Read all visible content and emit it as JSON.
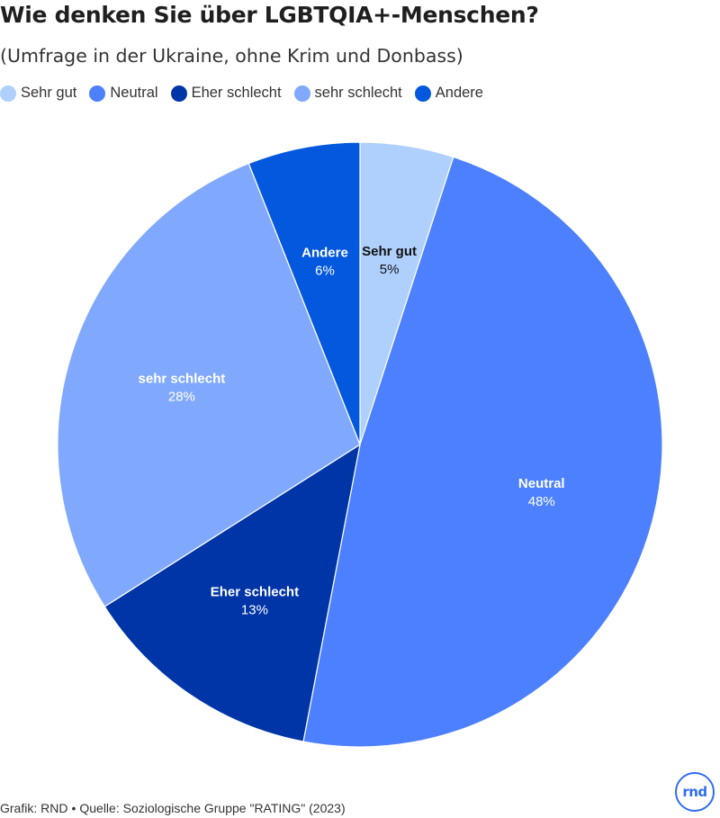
{
  "header": {
    "title": "Wie denken Sie über LGBTQIA+-Menschen?",
    "subtitle": "(Umfrage in der Ukraine, ohne Krim und Donbass)"
  },
  "legend": {
    "items": [
      {
        "label": "Sehr gut",
        "color": "#afd0fd"
      },
      {
        "label": "Neutral",
        "color": "#4c80fe"
      },
      {
        "label": "Eher schlecht",
        "color": "#0035a7"
      },
      {
        "label": "sehr schlecht",
        "color": "#80a9fd"
      },
      {
        "label": "Andere",
        "color": "#0358dd"
      }
    ]
  },
  "chart_data": {
    "type": "pie",
    "title": "Wie denken Sie über LGBTQIA+-Menschen?",
    "subtitle": "(Umfrage in der Ukraine, ohne Krim und Donbass)",
    "slices": [
      {
        "label": "Sehr gut",
        "value": 5,
        "display": "5%",
        "color": "#afd0fd",
        "label_color": "#111111"
      },
      {
        "label": "Neutral",
        "value": 48,
        "display": "48%",
        "color": "#4c80fe",
        "label_color": "#ffffff"
      },
      {
        "label": "Eher schlecht",
        "value": 13,
        "display": "13%",
        "color": "#0035a7",
        "label_color": "#ffffff"
      },
      {
        "label": "sehr schlecht",
        "value": 28,
        "display": "28%",
        "color": "#80a9fd",
        "label_color": "#ffffff"
      },
      {
        "label": "Andere",
        "value": 6,
        "display": "6%",
        "color": "#0358dd",
        "label_color": "#ffffff"
      }
    ],
    "start_angle": "12 o'clock",
    "direction": "clockwise",
    "legend_position": "top-left"
  },
  "footer": {
    "credit": "Grafik: RND",
    "separator": "•",
    "source": "Quelle: Soziologische Gruppe \"RATING\" (2023)"
  },
  "logo": {
    "text": "rnd",
    "color": "#2f6df2"
  }
}
